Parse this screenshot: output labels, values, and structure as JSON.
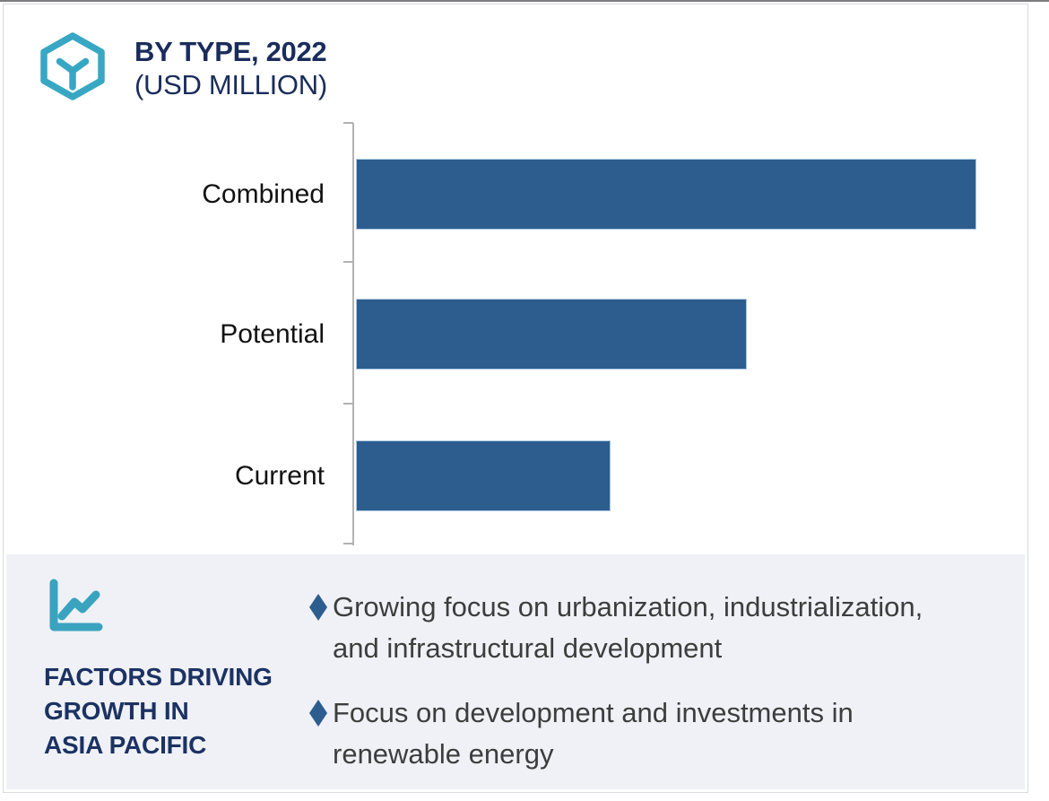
{
  "header": {
    "title": "BY TYPE, 2022",
    "subtitle": "(USD MILLION)",
    "icon": "hexagon-box-icon"
  },
  "chart_data": {
    "type": "bar",
    "orientation": "horizontal",
    "title": "BY TYPE, 2022 (USD MILLION)",
    "categories": [
      "Combined",
      "Potential",
      "Current"
    ],
    "values": [
      100,
      63,
      41
    ],
    "values_unit": "percent of longest bar (value axis has no numeric tick labels in image)",
    "xlabel": "",
    "ylabel": "",
    "grid": false,
    "legend": "none",
    "bar_color": "#2d5d8e"
  },
  "factors": {
    "icon": "line-chart-icon",
    "heading": "FACTORS DRIVING\nGROWTH IN\nASIA PACIFIC",
    "bullets": [
      {
        "text": "Growing focus on urbanization, industrialization,\nand infrastructural development"
      },
      {
        "text": "Focus on development and investments in\nrenewable energy"
      }
    ]
  },
  "colors": {
    "navy": "#1a2c5b",
    "teal": "#38a7c3",
    "bar_fill": "#2d5d8e",
    "bar_border": "#abc8e4",
    "panel_background": "#eff1f6",
    "axis_gray": "#b2b2b2",
    "body_text": "#3d3d3d"
  }
}
